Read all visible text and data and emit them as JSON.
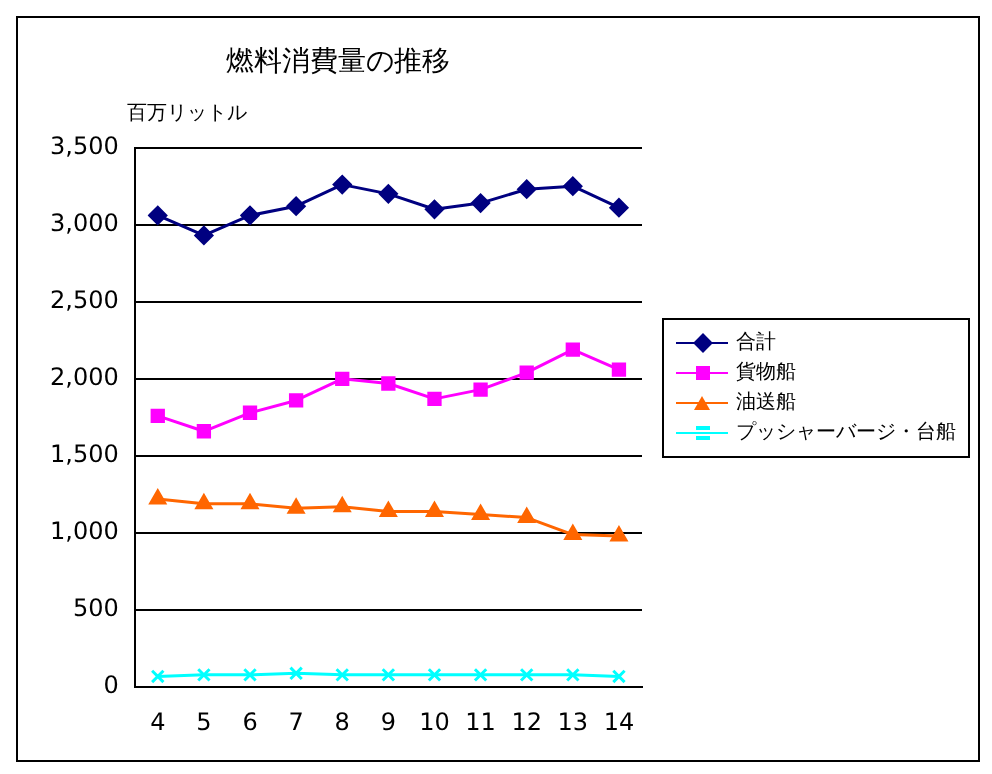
{
  "chart_data": {
    "type": "line",
    "title": "燃料消費量の推移",
    "ylabel": "百万リットル",
    "categories": [
      "4",
      "5",
      "6",
      "7",
      "8",
      "9",
      "10",
      "11",
      "12",
      "13",
      "14"
    ],
    "series": [
      {
        "name": "合計",
        "color": "#000080",
        "marker": "diamond",
        "values": [
          3060,
          2930,
          3060,
          3120,
          3260,
          3200,
          3100,
          3140,
          3230,
          3250,
          3110
        ]
      },
      {
        "name": "貨物船",
        "color": "#ff00ff",
        "marker": "square",
        "values": [
          1760,
          1660,
          1780,
          1860,
          2000,
          1970,
          1870,
          1930,
          2040,
          2190,
          2060
        ]
      },
      {
        "name": "油送船",
        "color": "#ff6600",
        "marker": "triangle",
        "values": [
          1220,
          1190,
          1190,
          1160,
          1170,
          1140,
          1140,
          1120,
          1100,
          990,
          980
        ]
      },
      {
        "name": "プッシャーバージ・台船",
        "color": "#00ffff",
        "marker": "cross",
        "values": [
          70,
          80,
          80,
          90,
          80,
          80,
          80,
          80,
          80,
          80,
          70
        ]
      }
    ],
    "ylim": [
      0,
      3500
    ],
    "yticks": [
      {
        "value": 0,
        "label": "0"
      },
      {
        "value": 500,
        "label": "500"
      },
      {
        "value": 1000,
        "label": "1,000"
      },
      {
        "value": 1500,
        "label": "1,500"
      },
      {
        "value": 2000,
        "label": "2,000"
      },
      {
        "value": 2500,
        "label": "2,500"
      },
      {
        "value": 3000,
        "label": "3,000"
      },
      {
        "value": 3500,
        "label": "3,500"
      }
    ],
    "grid": "y",
    "legend": "right"
  }
}
